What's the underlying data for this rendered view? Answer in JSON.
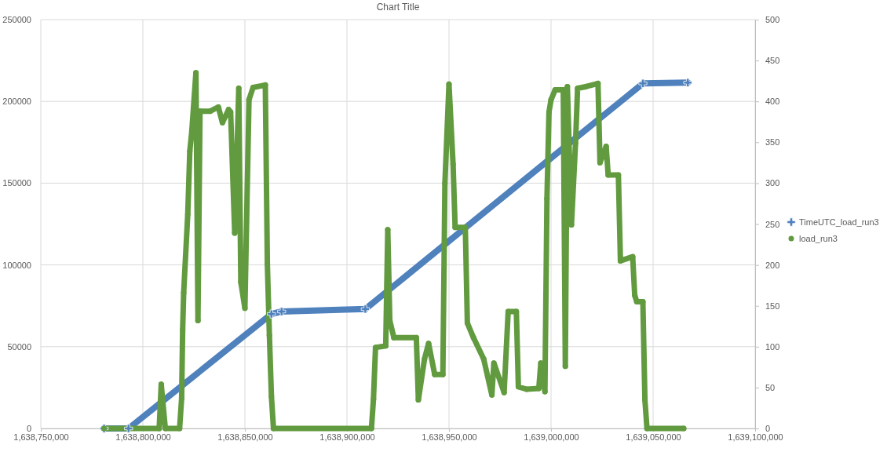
{
  "chart_data": {
    "type": "line",
    "title": "Chart Title",
    "grid": true,
    "legend": "right",
    "xlim": [
      1638750000,
      1639100000
    ],
    "xticks": [
      {
        "value": 1638750000,
        "label": "1,638,750,000"
      },
      {
        "value": 1638800000,
        "label": "1,638,800,000"
      },
      {
        "value": 1638850000,
        "label": "1,638,850,000"
      },
      {
        "value": 1638900000,
        "label": "1,638,900,000"
      },
      {
        "value": 1638950000,
        "label": "1,638,950,000"
      },
      {
        "value": 1639000000,
        "label": "1,639,000,000"
      },
      {
        "value": 1639050000,
        "label": "1,639,050,000"
      },
      {
        "value": 1639100000,
        "label": "1,639,100,000"
      }
    ],
    "ylim": [
      0,
      250000
    ],
    "yticks": [
      0,
      50000,
      100000,
      150000,
      200000,
      250000
    ],
    "y2lim": [
      0,
      500
    ],
    "y2ticks": [
      0,
      50,
      100,
      150,
      200,
      250,
      300,
      350,
      400,
      450,
      500
    ],
    "series": [
      {
        "name": "TimeUTC_load_run3",
        "color": "#4f81bd",
        "marker": "cross",
        "x": [
          1638781000,
          1638793000,
          1638863000,
          1638868000,
          1638909000,
          1639045000,
          1639067000
        ],
        "values": [
          0,
          0,
          70000,
          71500,
          73000,
          211000,
          211500
        ]
      },
      {
        "name": "load_run3",
        "color": "#629b3f",
        "axis": "y2",
        "marker": "circle",
        "x": [
          1638781000,
          1638808000,
          1638809000,
          1638811000,
          1638818000,
          1638819000,
          1638819500,
          1638820000,
          1638822000,
          1638823000,
          1638824000,
          1638826000,
          1638827000,
          1638828000,
          1638833000,
          1638837000,
          1638839000,
          1638842000,
          1638843000,
          1638845000,
          1638847000,
          1638848000,
          1638850000,
          1638852000,
          1638854000,
          1638860000,
          1638861000,
          1638862000,
          1638863000,
          1638864000,
          1638912000,
          1638913000,
          1638914000,
          1638919000,
          1638920000,
          1638921000,
          1638923000,
          1638934000,
          1638935000,
          1638938000,
          1638940000,
          1638943000,
          1638947000,
          1638948000,
          1638950000,
          1638952000,
          1638953000,
          1638958000,
          1638959000,
          1638962000,
          1638967000,
          1638971000,
          1638972000,
          1638977000,
          1638979000,
          1638983000,
          1638984000,
          1638988000,
          1638994000,
          1638995000,
          1638997000,
          1638998000,
          1638999000,
          1639000000,
          1639002000,
          1639006000,
          1639007000,
          1639008000,
          1639010000,
          1639012000,
          1639013000,
          1639017000,
          1639023000,
          1639024000,
          1639027000,
          1639028000,
          1639033000,
          1639034000,
          1639040000,
          1639041000,
          1639042000,
          1639045000,
          1639046000,
          1639047000,
          1639065000
        ],
        "values": [
          0,
          0,
          54,
          0,
          0,
          37,
          121,
          166,
          262,
          339,
          364,
          435,
          132,
          388,
          388,
          393,
          374,
          390,
          387,
          239,
          416,
          179,
          147,
          402,
          417,
          420,
          201,
          114,
          39,
          0,
          0,
          36,
          99,
          101,
          243,
          132,
          111,
          111,
          35,
          85,
          104,
          66,
          66,
          300,
          421,
          323,
          246,
          246,
          129,
          111,
          85,
          41,
          80,
          44,
          143,
          143,
          51,
          48,
          49,
          80,
          45,
          281,
          387,
          402,
          414,
          414,
          76,
          418,
          249,
          349,
          416,
          418,
          422,
          325,
          345,
          310,
          310,
          205,
          210,
          163,
          155,
          155,
          35,
          0,
          0
        ]
      }
    ]
  }
}
